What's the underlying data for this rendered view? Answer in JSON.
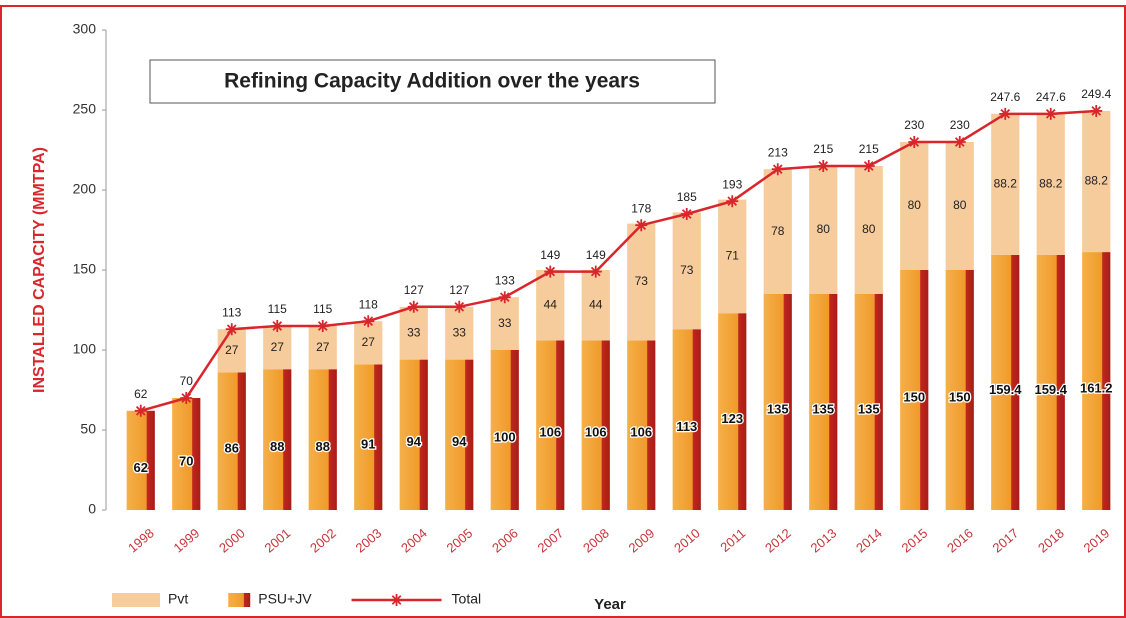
{
  "chart_data": {
    "type": "bar",
    "title": "Refining Capacity Addition over the years",
    "xlabel": "Year",
    "ylabel": "INSTALLED CAPACITY (MMTPA)",
    "categories": [
      "1998",
      "1999",
      "2000",
      "2001",
      "2002",
      "2003",
      "2004",
      "2005",
      "2006",
      "2007",
      "2008",
      "2009",
      "2010",
      "2011",
      "2012",
      "2013",
      "2014",
      "2015",
      "2016",
      "2017",
      "2018",
      "2019"
    ],
    "stacked": true,
    "series": [
      {
        "name": "Pvt",
        "type": "bar",
        "color": "#f7cc9c",
        "values": [
          null,
          null,
          27,
          27,
          27,
          27,
          33,
          33,
          33,
          44,
          44,
          73,
          73,
          71,
          78,
          80,
          80,
          80,
          80,
          88.2,
          88.2,
          88.2
        ]
      },
      {
        "name": "PSU+JV",
        "type": "bar",
        "color": "#f3a43a",
        "values": [
          62,
          70,
          86,
          88,
          88,
          91,
          94,
          94,
          100,
          106,
          106,
          106,
          113,
          123,
          135,
          135,
          135,
          150,
          150,
          159.4,
          159.4,
          161.2
        ]
      },
      {
        "name": "Total",
        "type": "line",
        "color": "#d9262c",
        "values": [
          62,
          70,
          113,
          115,
          115,
          118,
          127,
          127,
          133,
          149,
          149,
          178,
          185,
          193,
          213,
          215,
          215,
          230,
          230,
          247.6,
          247.6,
          249.4
        ]
      }
    ],
    "ylim": [
      0,
      300
    ],
    "yticks": [
      0,
      50,
      100,
      150,
      200,
      250,
      300
    ],
    "grid": false
  }
}
